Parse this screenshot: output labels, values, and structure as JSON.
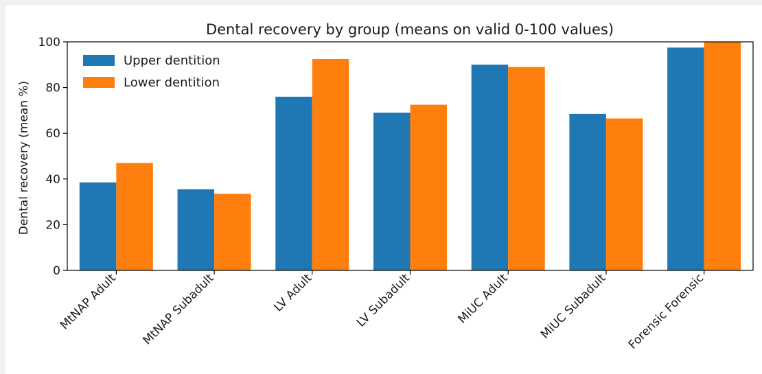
{
  "chart_data": {
    "type": "bar",
    "title": "Dental recovery by group (means on valid 0-100 values)",
    "xlabel": "",
    "ylabel": "Dental recovery (mean %)",
    "ylim": [
      0,
      100
    ],
    "yticks": [
      0,
      20,
      40,
      60,
      80,
      100
    ],
    "categories": [
      "MtNAP Adult",
      "MtNAP Subadult",
      "LV Adult",
      "LV Subadult",
      "MiUC Adult",
      "MiUC Subadult",
      "Forensic Forensic"
    ],
    "series": [
      {
        "name": "Upper dentition",
        "color": "#1f77b4",
        "values": [
          38.5,
          35.5,
          76.0,
          69.0,
          90.0,
          68.5,
          97.5
        ]
      },
      {
        "name": "Lower dentition",
        "color": "#ff7f0e",
        "values": [
          47.0,
          33.5,
          92.5,
          72.5,
          89.0,
          66.5,
          100.0
        ]
      }
    ],
    "grid": false,
    "legend_position": "top-left"
  }
}
